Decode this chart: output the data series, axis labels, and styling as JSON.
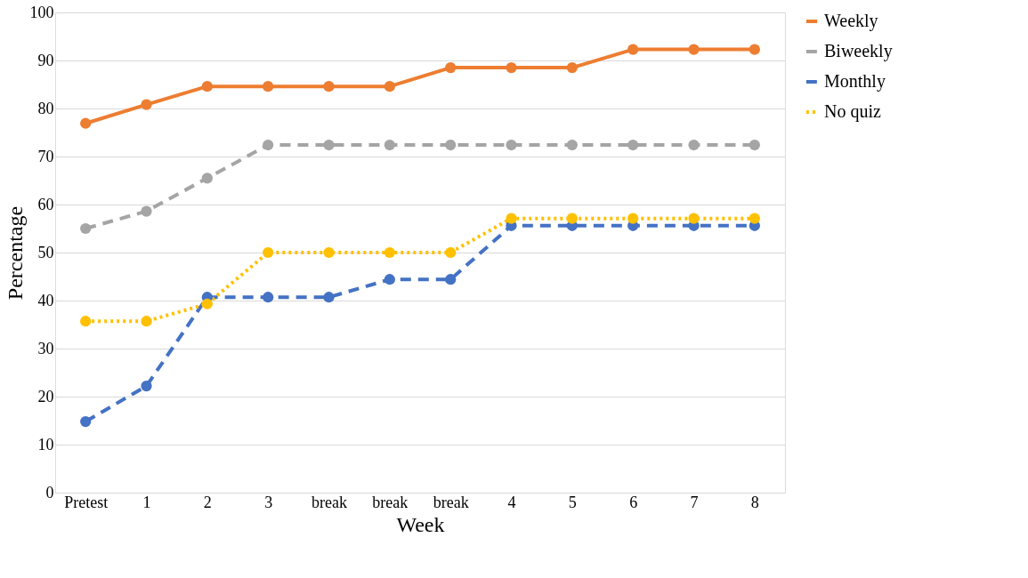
{
  "chart_data": {
    "type": "line",
    "xlabel": "Week",
    "ylabel": "Percentage",
    "categories": [
      "Pretest",
      "1",
      "2",
      "3",
      "break",
      "break",
      "break",
      "4",
      "5",
      "6",
      "7",
      "8"
    ],
    "series": [
      {
        "name": "Weekly",
        "color": "#ed7d31",
        "line_style": "solid",
        "values": [
          76.9,
          80.8,
          84.6,
          84.6,
          84.6,
          84.6,
          88.5,
          88.5,
          88.5,
          92.3,
          92.3,
          92.3
        ]
      },
      {
        "name": "Biweekly",
        "color": "#a5a5a5",
        "line_style": "dashed",
        "values": [
          55.0,
          58.6,
          65.5,
          72.4,
          72.4,
          72.4,
          72.4,
          72.4,
          72.4,
          72.4,
          72.4,
          72.4
        ]
      },
      {
        "name": "Monthly",
        "color": "#4472c4",
        "line_style": "dashed",
        "values": [
          14.8,
          22.2,
          40.7,
          40.7,
          40.7,
          44.4,
          44.4,
          55.6,
          55.6,
          55.6,
          55.6,
          55.6
        ]
      },
      {
        "name": "No quiz",
        "color": "#ffc000",
        "line_style": "dotted",
        "values": [
          35.7,
          35.7,
          39.3,
          50.0,
          50.0,
          50.0,
          50.0,
          57.1,
          57.1,
          57.1,
          57.1,
          57.1
        ]
      }
    ],
    "ylim": [
      0,
      100
    ],
    "yticks": [
      0,
      10,
      20,
      30,
      40,
      50,
      60,
      70,
      80,
      90,
      100
    ],
    "grid": "y",
    "legend": "right",
    "marker": "circle"
  }
}
